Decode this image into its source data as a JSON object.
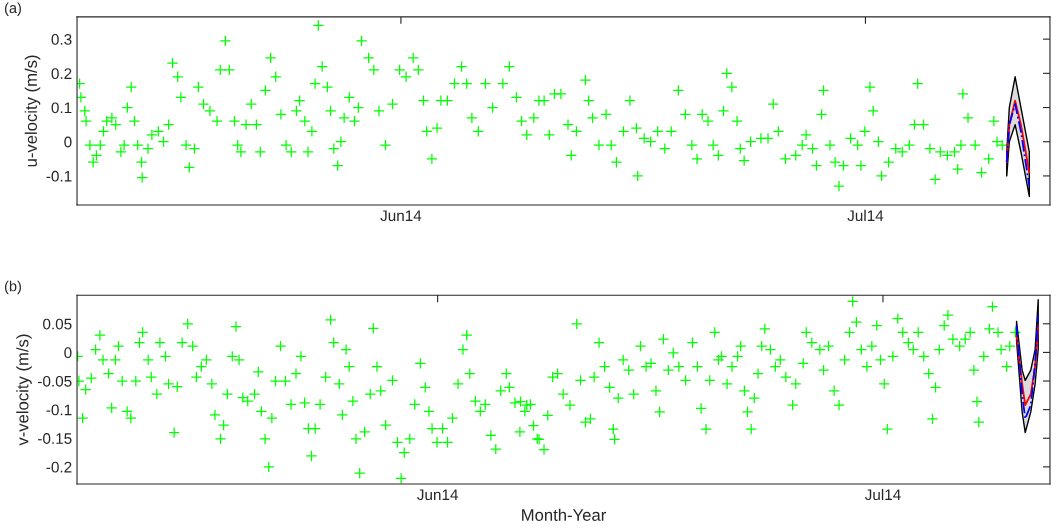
{
  "chart_data": [
    {
      "type": "scatter",
      "ylabel": "u-velocity (m/s)",
      "annotations": [
        "(a)"
      ],
      "xlim": [
        "2014-05-11T02:00",
        "2014-07-12T22:00"
      ],
      "xticks": [
        {
          "value": "2014-06-01",
          "label": "Jun14"
        },
        {
          "value": "2014-07-01",
          "label": "Jul14"
        }
      ],
      "ylim": [
        -0.185,
        0.365
      ],
      "yticks": [
        -0.1,
        0,
        0.1,
        0.2,
        0.3
      ],
      "series": [
        {
          "marker": "cross",
          "color": "#00ff00",
          "x": [
            "2014-05-11T06:00",
            "2014-05-11T08:00",
            "2014-05-11T14:00",
            "2014-05-11T16:00",
            "2014-05-11T22:00",
            "2014-05-12T03:00",
            "2014-05-12T08:00",
            "2014-05-12T14:00",
            "2014-05-12T19:00",
            "2014-05-13T00:00",
            "2014-05-13T08:00",
            "2014-05-13T14:00",
            "2014-05-13T22:00",
            "2014-05-14T03:00",
            "2014-05-14T08:00",
            "2014-05-14T14:00",
            "2014-05-14T19:00",
            "2014-05-15T00:00",
            "2014-05-15T06:00",
            "2014-05-15T07:00",
            "2014-05-15T16:00",
            "2014-05-15T22:00",
            "2014-05-16T08:00",
            "2014-05-16T16:00",
            "2014-05-17T00:00",
            "2014-05-17T06:00",
            "2014-05-17T14:00",
            "2014-05-17T19:00",
            "2014-05-18T03:00",
            "2014-05-18T08:00",
            "2014-05-18T16:00",
            "2014-05-18T22:00",
            "2014-05-19T06:00",
            "2014-05-19T16:00",
            "2014-05-20T03:00",
            "2014-05-20T08:00",
            "2014-05-20T16:00",
            "2014-05-20T22:00",
            "2014-05-21T06:00",
            "2014-05-21T11:00",
            "2014-05-21T16:00",
            "2014-05-22T00:00",
            "2014-05-22T08:00",
            "2014-05-22T16:00",
            "2014-05-22T22:00",
            "2014-05-23T06:00",
            "2014-05-23T14:00",
            "2014-05-23T22:00",
            "2014-05-24T06:00",
            "2014-05-24T14:00",
            "2014-05-24T22:00",
            "2014-05-25T06:00",
            "2014-05-25T11:00",
            "2014-05-25T19:00",
            "2014-05-26T00:00",
            "2014-05-26T06:00",
            "2014-05-26T11:00",
            "2014-05-26T16:00",
            "2014-05-26T22:00",
            "2014-05-27T06:00",
            "2014-05-27T11:00",
            "2014-05-27T16:00",
            "2014-05-27T22:00",
            "2014-05-28T03:00",
            "2014-05-28T08:00",
            "2014-05-28T16:00",
            "2014-05-29T00:00",
            "2014-05-29T06:00",
            "2014-05-29T11:00",
            "2014-05-29T22:00",
            "2014-05-30T06:00",
            "2014-05-30T14:00",
            "2014-05-31T00:00",
            "2014-05-31T11:00",
            "2014-05-31T22:00",
            "2014-06-01T08:00",
            "2014-06-01T19:00",
            "2014-06-02T03:00",
            "2014-06-02T11:00",
            "2014-06-02T16:00",
            "2014-06-03T00:00",
            "2014-06-03T08:00",
            "2014-06-03T14:00",
            "2014-06-04T00:00",
            "2014-06-04T11:00",
            "2014-06-04T22:00",
            "2014-06-05T06:00",
            "2014-06-05T14:00",
            "2014-06-06T00:00",
            "2014-06-06T11:00",
            "2014-06-06T22:00",
            "2014-06-07T14:00",
            "2014-06-08T00:00",
            "2014-06-08T11:00",
            "2014-06-08T19:00",
            "2014-06-09T03:00",
            "2014-06-09T14:00",
            "2014-06-09T22:00",
            "2014-06-10T06:00",
            "2014-06-10T14:00",
            "2014-06-10T22:00",
            "2014-06-11T08:00",
            "2014-06-11T19:00",
            "2014-06-12T00:00",
            "2014-06-12T08:00",
            "2014-06-12T22:00",
            "2014-06-13T03:00",
            "2014-06-13T09:00",
            "2014-06-13T19:00",
            "2014-06-14T06:00",
            "2014-06-14T14:00",
            "2014-06-14T22:00",
            "2014-06-15T09:00",
            "2014-06-15T19:00",
            "2014-06-16T05:00",
            "2014-06-16T07:00",
            "2014-06-16T17:00",
            "2014-06-17T03:00",
            "2014-06-17T14:00",
            "2014-06-18T01:00",
            "2014-06-18T11:00",
            "2014-06-18T22:00",
            "2014-06-19T09:00",
            "2014-06-19T19:00",
            "2014-06-20T03:00",
            "2014-06-20T11:00",
            "2014-06-20T20:00",
            "2014-06-21T04:00",
            "2014-06-21T12:00",
            "2014-06-21T20:00",
            "2014-06-22T01:00",
            "2014-06-22T09:00",
            "2014-06-22T17:00",
            "2014-06-22T22:00",
            "2014-06-23T04:00",
            "2014-06-23T14:00",
            "2014-06-24T06:00",
            "2014-06-24T17:00",
            "2014-06-25T01:00",
            "2014-06-25T09:00",
            "2014-06-25T20:00",
            "2014-06-26T12:00",
            "2014-06-26T22:00",
            "2014-06-27T04:00",
            "2014-06-27T14:00",
            "2014-06-27T20:00",
            "2014-06-28T04:00",
            "2014-06-28T07:00",
            "2014-06-28T17:00",
            "2014-06-29T01:00",
            "2014-06-29T07:00",
            "2014-06-29T14:00",
            "2014-06-30T01:00",
            "2014-06-30T12:00",
            "2014-06-30T17:00",
            "2014-06-30T23:00",
            "2014-07-01T07:00",
            "2014-07-01T12:00",
            "2014-07-01T20:00",
            "2014-07-02T01:00",
            "2014-07-02T12:00",
            "2014-07-02T23:00",
            "2014-07-03T09:00",
            "2014-07-03T20:00",
            "2014-07-04T04:00",
            "2014-07-04T09:00",
            "2014-07-04T18:00",
            "2014-07-05T04:00",
            "2014-07-05T12:00",
            "2014-07-05T20:00",
            "2014-07-06T07:00",
            "2014-07-06T18:00",
            "2014-07-06T23:00",
            "2014-07-07T04:00",
            "2014-07-07T07:00",
            "2014-07-07T15:00",
            "2014-07-08T02:00",
            "2014-07-08T12:00",
            "2014-07-08T23:00",
            "2014-07-09T07:00",
            "2014-07-09T12:00",
            "2014-07-09T20:00"
          ],
          "values": [
            0.17,
            0.13,
            0.09,
            0.06,
            -0.01,
            -0.06,
            -0.04,
            -0.01,
            0.03,
            0.06,
            0.07,
            0.05,
            -0.03,
            -0.01,
            0.1,
            0.16,
            0.06,
            -0.01,
            -0.06,
            -0.105,
            -0.02,
            0.02,
            0.03,
            0.0,
            0.05,
            0.23,
            0.19,
            0.13,
            -0.01,
            -0.075,
            -0.02,
            0.16,
            0.11,
            0.09,
            0.06,
            0.21,
            0.295,
            0.21,
            0.06,
            -0.01,
            -0.03,
            0.05,
            0.11,
            0.05,
            -0.03,
            0.15,
            0.245,
            0.19,
            0.08,
            -0.01,
            -0.03,
            0.09,
            0.12,
            0.06,
            -0.03,
            0.03,
            0.17,
            0.34,
            0.22,
            0.16,
            0.09,
            -0.02,
            -0.07,
            0.0,
            0.07,
            0.13,
            0.06,
            0.1,
            0.295,
            0.245,
            0.21,
            0.09,
            -0.01,
            0.11,
            0.21,
            0.19,
            0.245,
            0.21,
            0.12,
            0.03,
            -0.05,
            0.04,
            0.12,
            0.12,
            0.17,
            0.22,
            0.17,
            0.07,
            0.03,
            0.17,
            0.1,
            0.17,
            0.22,
            0.13,
            0.06,
            0.02,
            0.07,
            0.12,
            0.12,
            0.02,
            0.14,
            0.14,
            0.05,
            -0.04,
            0.03,
            0.18,
            0.12,
            0.07,
            -0.01,
            0.08,
            -0.01,
            -0.06,
            0.03,
            0.12,
            0.04,
            -0.1,
            0.01,
            0.0,
            0.03,
            -0.02,
            0.03,
            0.15,
            0.08,
            -0.01,
            -0.05,
            0.08,
            0.06,
            -0.01,
            -0.04,
            0.09,
            0.2,
            0.16,
            0.06,
            -0.02,
            -0.055,
            0.0,
            0.01,
            0.01,
            0.11,
            0.03,
            -0.05,
            -0.04,
            -0.01,
            0.02,
            -0.02,
            -0.07,
            0.08,
            0.15,
            -0.01,
            -0.06,
            -0.13,
            -0.07,
            0.01,
            -0.01,
            -0.07,
            0.03,
            0.16,
            0.09,
            0.0,
            -0.1,
            -0.06,
            -0.02,
            -0.03,
            -0.01,
            0.05,
            0.17,
            0.05,
            -0.02,
            -0.11,
            -0.03,
            -0.04,
            -0.03,
            -0.08,
            -0.01,
            0.14,
            0.07,
            -0.01,
            -0.09,
            -0.05,
            0.06,
            0.0,
            -0.01
          ]
        },
        {
          "type": "line",
          "color": "#ff0000",
          "line_style": "solid",
          "x": [
            "2014-07-10T03:00",
            "2014-07-10T07:00",
            "2014-07-10T16:00",
            "2014-07-11T01:00",
            "2014-07-11T14:00"
          ],
          "values": [
            -0.06,
            0.05,
            0.12,
            0.05,
            -0.09
          ],
          "lower": [
            -0.1,
            0.0,
            0.05,
            -0.03,
            -0.16
          ],
          "upper": [
            -0.03,
            0.1,
            0.19,
            0.1,
            -0.03
          ]
        },
        {
          "type": "line",
          "color": "#0000ff",
          "line_style": "dashed",
          "x": [
            "2014-07-10T03:00",
            "2014-07-10T07:00",
            "2014-07-10T16:00",
            "2014-07-11T01:00",
            "2014-07-11T14:00"
          ],
          "values": [
            -0.06,
            0.05,
            0.11,
            0.03,
            -0.13
          ]
        }
      ]
    },
    {
      "type": "scatter",
      "ylabel": "v-velocity (m/s)",
      "xlabel": "Month-Year",
      "annotations": [
        "(b)"
      ],
      "xlim": [
        "2014-05-07T17:00",
        "2014-07-12T06:00"
      ],
      "xticks": [
        {
          "value": "2014-06-01",
          "label": "Jun14"
        },
        {
          "value": "2014-07-01",
          "label": "Jul14"
        }
      ],
      "ylim": [
        -0.23,
        0.1
      ],
      "yticks": [
        -0.2,
        -0.15,
        -0.1,
        -0.05,
        0,
        0.05
      ],
      "series": [
        {
          "marker": "cross",
          "color": "#00ff00",
          "x": [
            "2014-05-07T18:00",
            "2014-05-07T20:00",
            "2014-05-08T02:00",
            "2014-05-08T07:00",
            "2014-05-08T16:00",
            "2014-05-08T23:00",
            "2014-05-09T06:00",
            "2014-05-09T11:00",
            "2014-05-09T20:00",
            "2014-05-10T01:00",
            "2014-05-10T07:00",
            "2014-05-10T12:00",
            "2014-05-10T18:00",
            "2014-05-11T02:00",
            "2014-05-11T08:00",
            "2014-05-11T16:00",
            "2014-05-11T22:00",
            "2014-05-12T03:00",
            "2014-05-12T12:00",
            "2014-05-12T17:00",
            "2014-05-13T02:00",
            "2014-05-13T07:00",
            "2014-05-13T16:00",
            "2014-05-13T21:00",
            "2014-05-14T06:00",
            "2014-05-14T11:00",
            "2014-05-14T19:00",
            "2014-05-15T04:00",
            "2014-05-15T12:00",
            "2014-05-15T18:00",
            "2014-05-16T02:00",
            "2014-05-16T10:00",
            "2014-05-16T19:00",
            "2014-05-17T00:00",
            "2014-05-17T09:00",
            "2014-05-17T14:00",
            "2014-05-17T20:00",
            "2014-05-18T04:00",
            "2014-05-18T10:00",
            "2014-05-18T15:00",
            "2014-05-18T21:00",
            "2014-05-19T05:00",
            "2014-05-19T16:00",
            "2014-05-19T22:00",
            "2014-05-20T03:00",
            "2014-05-20T09:00",
            "2014-05-20T15:00",
            "2014-05-20T20:00",
            "2014-05-21T02:00",
            "2014-05-21T10:00",
            "2014-05-21T18:00",
            "2014-05-22T03:00",
            "2014-05-22T11:00",
            "2014-05-22T19:00",
            "2014-05-23T01:00",
            "2014-05-23T07:00",
            "2014-05-23T12:00",
            "2014-05-23T18:00",
            "2014-05-24T02:00",
            "2014-05-24T11:00",
            "2014-05-24T19:00",
            "2014-05-25T00:00",
            "2014-05-25T09:00",
            "2014-05-25T14:00",
            "2014-05-25T20:00",
            "2014-05-26T01:00",
            "2014-05-26T07:00",
            "2014-05-26T12:00",
            "2014-05-26T18:00",
            "2014-05-27T02:00",
            "2014-05-27T11:00",
            "2014-05-27T16:00",
            "2014-05-27T22:00",
            "2014-05-28T04:00",
            "2014-05-28T12:00",
            "2014-05-28T23:00",
            "2014-05-29T07:00",
            "2014-05-29T13:00",
            "2014-05-29T18:00",
            "2014-05-30T03:00",
            "2014-05-30T11:00",
            "2014-05-30T20:00",
            "2014-05-31T04:00",
            "2014-05-31T10:00",
            "2014-05-31T15:00",
            "2014-05-31T23:00",
            "2014-06-01T08:00",
            "2014-06-01T16:00",
            "2014-06-02T00:00",
            "2014-06-02T09:00",
            "2014-06-02T17:00",
            "2014-06-02T23:00",
            "2014-06-03T04:00",
            "2014-06-03T13:00",
            "2014-06-03T21:00",
            "2014-06-04T05:00",
            "2014-06-04T14:00",
            "2014-06-04T22:00",
            "2014-06-05T06:00",
            "2014-06-05T15:00",
            "2014-06-05T20:00",
            "2014-06-06T05:00",
            "2014-06-06T13:00",
            "2014-06-06T21:00",
            "2014-06-07T06:00",
            "2014-06-07T17:00",
            "2014-06-06T14:00",
            "2014-06-07T00:00",
            "2014-06-07T11:00",
            "2014-06-07T20:00",
            "2014-06-08T04:00",
            "2014-06-08T10:00",
            "2014-06-08T18:00",
            "2014-06-09T02:00",
            "2014-06-09T11:00",
            "2014-06-09T22:00",
            "2014-06-10T09:00",
            "2014-06-10T15:00",
            "2014-06-10T23:00",
            "2014-06-11T07:00",
            "2014-06-11T13:00",
            "2014-06-11T21:00",
            "2014-06-12T06:00",
            "2014-06-12T14:00",
            "2014-06-12T20:00",
            "2014-06-12T22:00",
            "2014-06-13T04:00",
            "2014-06-13T12:00",
            "2014-06-13T21:00",
            "2014-06-14T05:00",
            "2014-06-14T16:00",
            "2014-06-15T01:00",
            "2014-06-15T09:00",
            "2014-06-15T17:00",
            "2014-06-15T23:00",
            "2014-06-16T05:00",
            "2014-06-16T13:00",
            "2014-06-16T21:00",
            "2014-06-17T06:00",
            "2014-06-17T17:00",
            "2014-06-18T04:00",
            "2014-06-18T12:00",
            "2014-06-18T18:00",
            "2014-06-19T02:00",
            "2014-06-19T08:00",
            "2014-06-19T16:00",
            "2014-06-19T22:00",
            "2014-06-20T03:00",
            "2014-06-20T12:00",
            "2014-06-20T20:00",
            "2014-06-21T05:00",
            "2014-06-21T10:00",
            "2014-06-21T16:00",
            "2014-06-21T21:00",
            "2014-06-22T03:00",
            "2014-06-22T08:00",
            "2014-06-22T14:00",
            "2014-06-22T20:00",
            "2014-06-23T01:00",
            "2014-06-23T10:00",
            "2014-06-23T18:00",
            "2014-06-24T02:00",
            "2014-06-24T11:00",
            "2014-06-24T22:00",
            "2014-06-25T03:00",
            "2014-06-25T15:00",
            "2014-06-25T20:00",
            "2014-06-26T05:00",
            "2014-06-26T18:00",
            "2014-06-27T00:00",
            "2014-06-27T08:00",
            "2014-06-27T17:00",
            "2014-06-28T01:00",
            "2014-06-28T10:00",
            "2014-06-28T18:00",
            "2014-06-28T23:00",
            "2014-06-29T05:00",
            "2014-06-29T13:00",
            "2014-06-29T22:00",
            "2014-06-30T06:00",
            "2014-06-30T14:00",
            "2014-06-30T20:00",
            "2014-07-01T02:00",
            "2014-07-01T07:00",
            "2014-07-01T16:00",
            "2014-07-02T00:00",
            "2014-07-02T08:00",
            "2014-07-02T17:00",
            "2014-07-03T01:00",
            "2014-07-03T09:00",
            "2014-07-03T18:00",
            "2014-07-04T02:00",
            "2014-07-04T08:00",
            "2014-07-04T13:00",
            "2014-07-04T19:00",
            "2014-07-05T03:00",
            "2014-07-05T09:00",
            "2014-07-05T17:00",
            "2014-07-06T04:00",
            "2014-07-06T13:00",
            "2014-07-06T21:00",
            "2014-07-07T03:00",
            "2014-07-07T08:00",
            "2014-07-07T11:00",
            "2014-07-07T19:00",
            "2014-07-08T04:00",
            "2014-07-08T09:00",
            "2014-07-08T18:00",
            "2014-07-08T23:00",
            "2014-07-09T08:00",
            "2014-07-09T13:00",
            "2014-07-09T22:00"
          ],
          "values": [
            -0.007,
            -0.05,
            -0.115,
            -0.065,
            -0.045,
            0.005,
            0.03,
            -0.013,
            -0.037,
            -0.097,
            -0.013,
            0.011,
            -0.05,
            -0.103,
            -0.115,
            -0.05,
            0.017,
            0.035,
            -0.013,
            -0.043,
            -0.073,
            0.017,
            -0.007,
            -0.055,
            -0.14,
            -0.06,
            0.017,
            0.05,
            0.011,
            -0.043,
            -0.025,
            -0.013,
            -0.055,
            -0.109,
            -0.151,
            -0.127,
            -0.073,
            -0.007,
            0.045,
            -0.013,
            -0.079,
            -0.085,
            -0.073,
            -0.034,
            -0.103,
            -0.151,
            -0.2,
            -0.115,
            -0.05,
            0.011,
            -0.05,
            -0.091,
            -0.037,
            -0.007,
            -0.088,
            -0.133,
            -0.181,
            -0.133,
            -0.091,
            -0.043,
            0.057,
            0.017,
            -0.055,
            -0.109,
            0.005,
            -0.025,
            -0.085,
            -0.151,
            -0.211,
            -0.139,
            -0.073,
            0.042,
            -0.025,
            -0.067,
            -0.127,
            -0.049,
            -0.157,
            -0.22,
            -0.175,
            -0.151,
            -0.091,
            -0.019,
            -0.061,
            -0.103,
            -0.133,
            -0.157,
            -0.133,
            -0.157,
            -0.115,
            -0.055,
            0.005,
            0.03,
            -0.037,
            -0.085,
            -0.103,
            -0.091,
            -0.145,
            -0.169,
            -0.067,
            -0.037,
            -0.061,
            -0.088,
            -0.139,
            -0.103,
            -0.091,
            -0.151,
            -0.086,
            -0.092,
            -0.128,
            -0.152,
            -0.17,
            -0.11,
            -0.043,
            -0.037,
            -0.073,
            -0.092,
            0.05,
            -0.049,
            -0.122,
            -0.116,
            -0.043,
            0.017,
            -0.025,
            -0.061,
            -0.134,
            -0.152,
            -0.08,
            -0.013,
            -0.031,
            -0.073,
            0.011,
            -0.025,
            -0.019,
            -0.067,
            -0.104,
            0.023,
            -0.031,
            -0.001,
            -0.025,
            -0.049,
            0.017,
            -0.025,
            -0.098,
            -0.134,
            -0.049,
            0.035,
            -0.013,
            -0.007,
            -0.055,
            -0.025,
            -0.007,
            0.011,
            -0.067,
            -0.104,
            -0.134,
            -0.08,
            -0.037,
            0.011,
            0.041,
            0.005,
            -0.025,
            -0.013,
            -0.043,
            -0.092,
            -0.055,
            -0.019,
            0.035,
            0.017,
            0.005,
            -0.031,
            0.011,
            -0.067,
            -0.092,
            -0.013,
            0.035,
            0.089,
            0.053,
            0.005,
            -0.025,
            0.011,
            0.047,
            -0.013,
            -0.055,
            -0.134,
            -0.007,
            0.059,
            0.035,
            0.017,
            0.005,
            0.035,
            -0.007,
            -0.037,
            -0.116,
            -0.061,
            0.005,
            0.047,
            0.065,
            0.023,
            0.011,
            0.023,
            0.035,
            -0.031,
            -0.086,
            -0.122,
            -0.007,
            0.041,
            0.08,
            0.035,
            0.005,
            -0.025,
            0.011,
            0.035
          ]
        },
        {
          "type": "line",
          "color": "#ff0000",
          "line_style": "solid",
          "x": [
            "2014-07-10T00:00",
            "2014-07-10T09:00",
            "2014-07-10T14:00",
            "2014-07-10T23:00",
            "2014-07-11T06:00",
            "2014-07-11T11:00"
          ],
          "values": [
            0.03,
            -0.055,
            -0.092,
            -0.073,
            -0.025,
            0.047
          ],
          "lower": [
            0.02,
            -0.104,
            -0.14,
            -0.104,
            -0.055,
            0.005
          ],
          "upper": [
            0.054,
            -0.031,
            -0.049,
            -0.031,
            0.005,
            0.092
          ]
        },
        {
          "type": "line",
          "color": "#0000ff",
          "line_style": "dashed",
          "x": [
            "2014-07-10T00:00",
            "2014-07-10T09:00",
            "2014-07-10T14:00",
            "2014-07-10T23:00",
            "2014-07-11T06:00",
            "2014-07-11T11:00"
          ],
          "values": [
            0.047,
            -0.073,
            -0.116,
            -0.092,
            -0.019,
            0.065
          ]
        }
      ]
    }
  ]
}
